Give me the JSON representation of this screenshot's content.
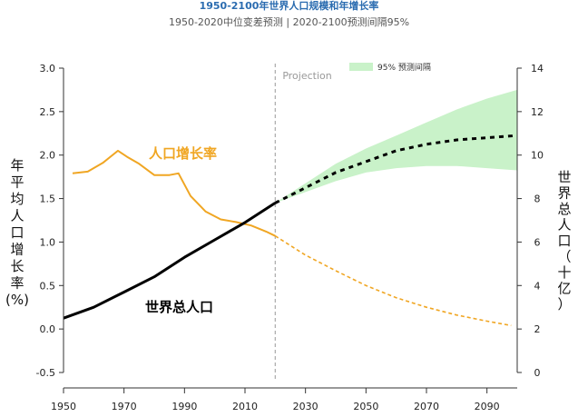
{
  "header": {
    "title": "1950-2100年世界人口规模和年增长率",
    "subtitle": "1950-2020中位变差预测 | 2020-2100预测间隔95%",
    "title_color": "#2b6cb0"
  },
  "chart_data": {
    "type": "line",
    "xlim": [
      1950,
      2100
    ],
    "x_ticks": [
      1950,
      1970,
      1990,
      2010,
      2030,
      2050,
      2070,
      2090
    ],
    "left_axis": {
      "label_chars": [
        "年",
        "平",
        "均",
        "人",
        "口",
        "增",
        "长",
        "率",
        "(%)"
      ],
      "ylim": [
        -0.5,
        3.0
      ],
      "ticks": [
        "-0.5",
        "0.0",
        "0.5",
        "1.0",
        "1.5",
        "2.0",
        "2.5",
        "3.0"
      ]
    },
    "right_axis": {
      "label_chars": [
        "世",
        "界",
        "总",
        "人",
        "口",
        "（",
        "十",
        "亿",
        "）"
      ],
      "ylim": [
        0,
        14
      ],
      "ticks": [
        "0",
        "2",
        "4",
        "6",
        "8",
        "10",
        "12",
        "14"
      ]
    },
    "projection_line": {
      "x": 2020,
      "label": "Projection"
    },
    "legend": {
      "label": "95% 预测间隔",
      "placement": "top"
    },
    "colors": {
      "growth": "#f0a623",
      "population": "#000000",
      "band": "#c9f2c9",
      "projection": "#aaaaaa",
      "axis": "#333333"
    },
    "annotations": {
      "growth_label": "人口增长率",
      "population_label": "世界总人口"
    },
    "series": [
      {
        "id": "growth_hist",
        "axis": "left",
        "style": "solid",
        "x": [
          1953,
          1958,
          1963,
          1968,
          1971,
          1975,
          1980,
          1985,
          1988,
          1992,
          1997,
          2002,
          2007,
          2012,
          2017,
          2020
        ],
        "y": [
          1.79,
          1.81,
          1.91,
          2.05,
          1.98,
          1.9,
          1.77,
          1.77,
          1.79,
          1.53,
          1.35,
          1.26,
          1.23,
          1.19,
          1.12,
          1.07
        ]
      },
      {
        "id": "growth_proj",
        "axis": "left",
        "style": "dashed",
        "x": [
          2020,
          2030,
          2040,
          2050,
          2060,
          2070,
          2080,
          2090,
          2098
        ],
        "y": [
          1.07,
          0.85,
          0.67,
          0.5,
          0.36,
          0.25,
          0.16,
          0.09,
          0.04
        ]
      },
      {
        "id": "pop_hist",
        "axis": "right",
        "style": "solid",
        "x": [
          1950,
          1960,
          1970,
          1980,
          1990,
          2000,
          2010,
          2020
        ],
        "y": [
          2.5,
          3.0,
          3.7,
          4.4,
          5.3,
          6.1,
          6.9,
          7.8
        ]
      },
      {
        "id": "pop_proj",
        "axis": "right",
        "style": "dotted",
        "x": [
          2020,
          2030,
          2040,
          2050,
          2060,
          2070,
          2080,
          2090,
          2100
        ],
        "y": [
          7.8,
          8.5,
          9.2,
          9.7,
          10.2,
          10.5,
          10.7,
          10.8,
          10.9
        ]
      }
    ],
    "band": {
      "axis": "right",
      "x": [
        2020,
        2030,
        2040,
        2050,
        2060,
        2070,
        2080,
        2090,
        2100
      ],
      "lower": [
        7.8,
        8.3,
        8.8,
        9.2,
        9.4,
        9.5,
        9.5,
        9.4,
        9.3
      ],
      "upper": [
        7.8,
        8.7,
        9.6,
        10.3,
        10.9,
        11.5,
        12.1,
        12.6,
        13.0
      ]
    }
  }
}
